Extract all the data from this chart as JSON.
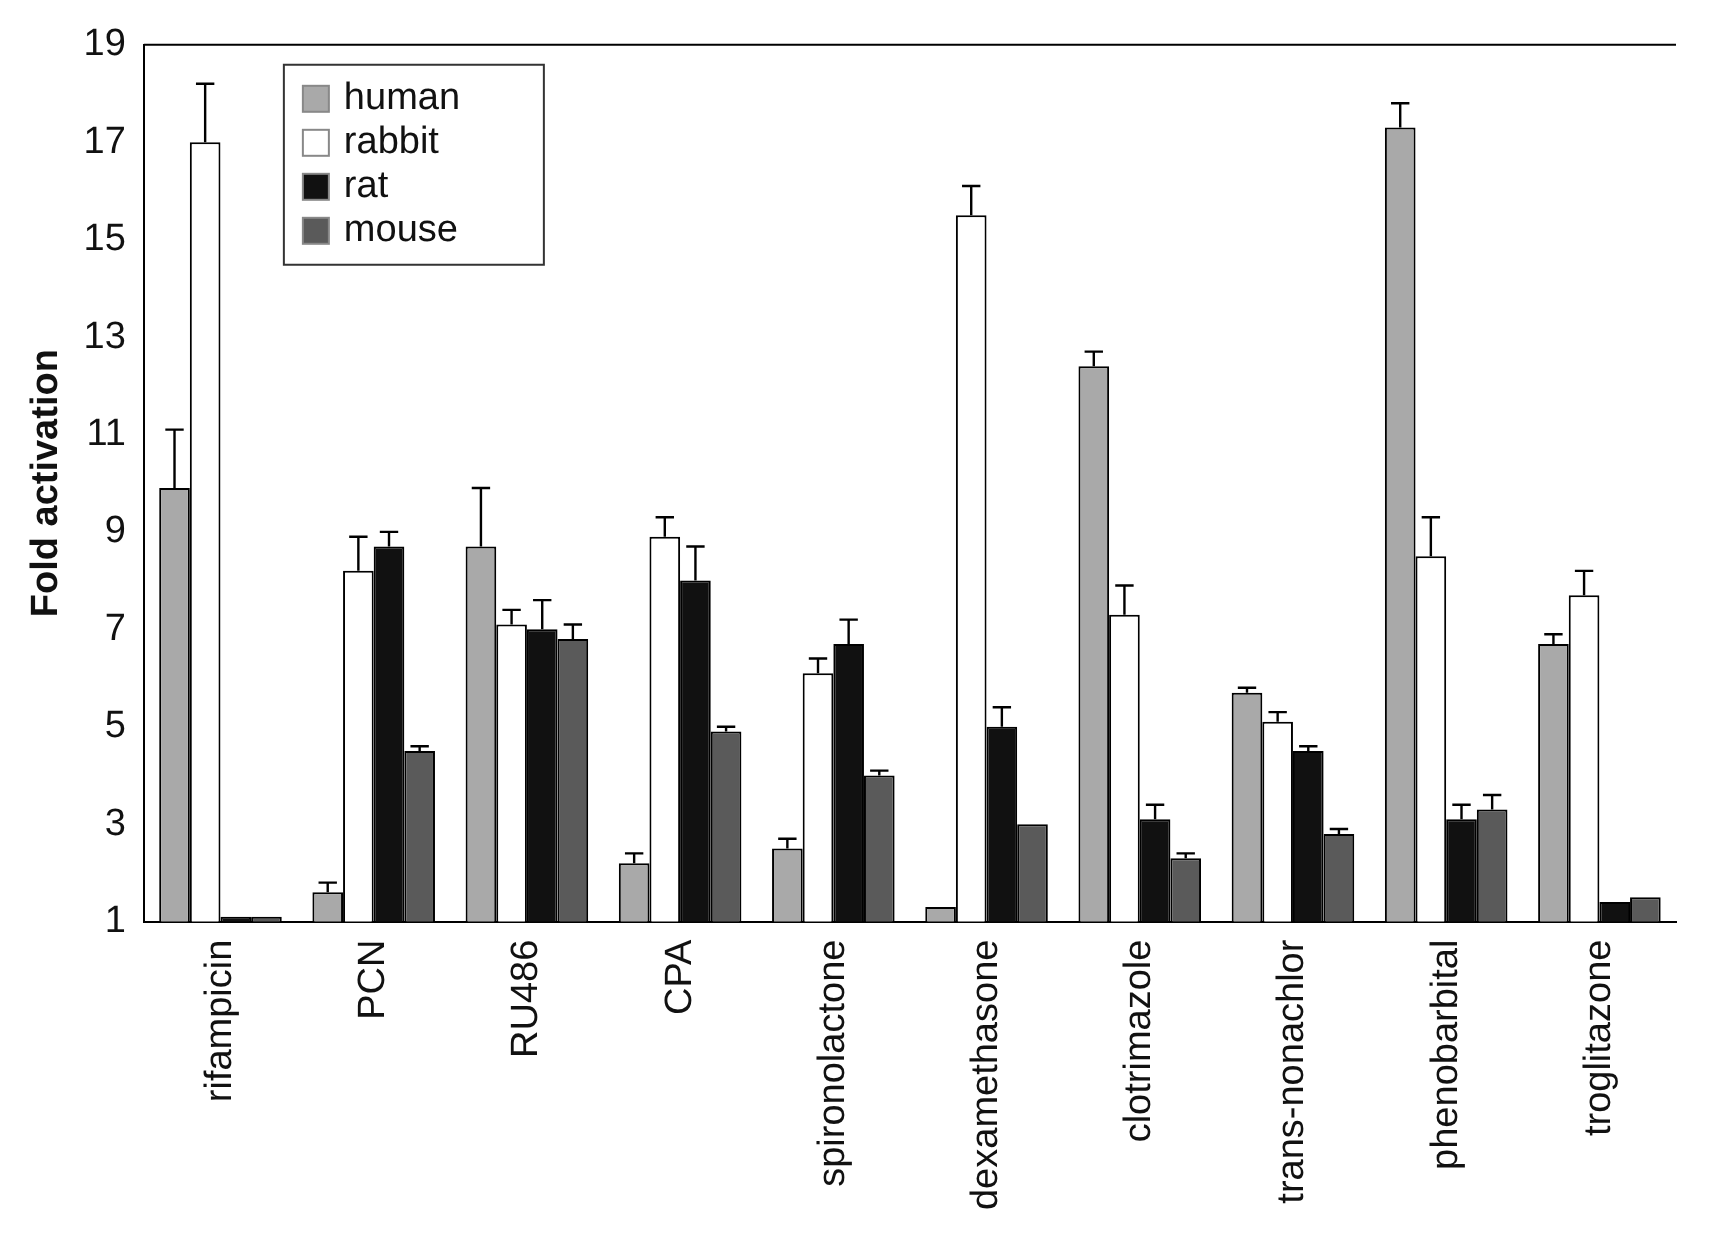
{
  "chart_data": {
    "type": "bar",
    "ylabel": "Fold activation",
    "categories": [
      "rifampicin",
      "PCN",
      "RU486",
      "CPA",
      "spironolactone",
      "dexamethasone",
      "clotrimazole",
      "trans-nonachlor",
      "phenobarbital",
      "troglitazone"
    ],
    "series": [
      {
        "name": "human",
        "color": "#a9a9a9",
        "values": [
          9.9,
          1.6,
          8.7,
          2.2,
          2.5,
          1.3,
          12.4,
          5.7,
          17.3,
          6.7
        ],
        "errors": [
          [
            9.9,
            11.1
          ],
          [
            1.6,
            1.8
          ],
          [
            8.7,
            9.9
          ],
          [
            2.2,
            2.4
          ],
          [
            2.5,
            2.7
          ],
          null,
          [
            12.4,
            12.7
          ],
          [
            5.7,
            5.8
          ],
          [
            17.3,
            17.8
          ],
          [
            6.7,
            6.9
          ]
        ]
      },
      {
        "name": "rabbit",
        "color": "#ffffff",
        "values": [
          17,
          8.2,
          7.1,
          8.9,
          6.1,
          15.5,
          7.3,
          5.1,
          8.5,
          7.7
        ],
        "errors": [
          [
            17,
            18.2
          ],
          [
            8.2,
            8.9
          ],
          [
            7.1,
            7.4
          ],
          [
            8.9,
            9.3
          ],
          [
            6.1,
            6.4
          ],
          [
            15.5,
            16.1
          ],
          [
            7.3,
            7.9
          ],
          [
            5.1,
            5.3
          ],
          [
            8.5,
            9.3
          ],
          [
            7.7,
            8.2
          ]
        ]
      },
      {
        "name": "rat",
        "color": "#111111",
        "values": [
          1.1,
          8.7,
          7.0,
          8.0,
          6.7,
          5.0,
          3.1,
          4.5,
          3.1,
          1.4
        ],
        "errors": [
          null,
          [
            8.7,
            9.0
          ],
          [
            7.0,
            7.6
          ],
          [
            8.0,
            8.7
          ],
          [
            6.7,
            7.2
          ],
          [
            5.0,
            5.4
          ],
          [
            3.1,
            3.4
          ],
          [
            4.5,
            4.6
          ],
          [
            3.1,
            3.4
          ],
          null
        ]
      },
      {
        "name": "mouse",
        "color": "#5a5a5a",
        "values": [
          1.1,
          4.5,
          6.8,
          4.9,
          4.0,
          3.0,
          2.3,
          2.8,
          3.3,
          1.5
        ],
        "errors": [
          null,
          [
            4.5,
            4.6
          ],
          [
            6.8,
            7.1
          ],
          [
            4.9,
            5.0
          ],
          [
            4.0,
            4.1
          ],
          null,
          [
            2.3,
            2.4
          ],
          [
            2.8,
            2.9
          ],
          [
            3.3,
            3.6
          ],
          null
        ]
      }
    ],
    "ylim": [
      1,
      19
    ],
    "yticks": [
      1,
      3,
      5,
      7,
      9,
      11,
      13,
      15,
      17,
      19
    ],
    "grid": false,
    "legend": "top left"
  }
}
